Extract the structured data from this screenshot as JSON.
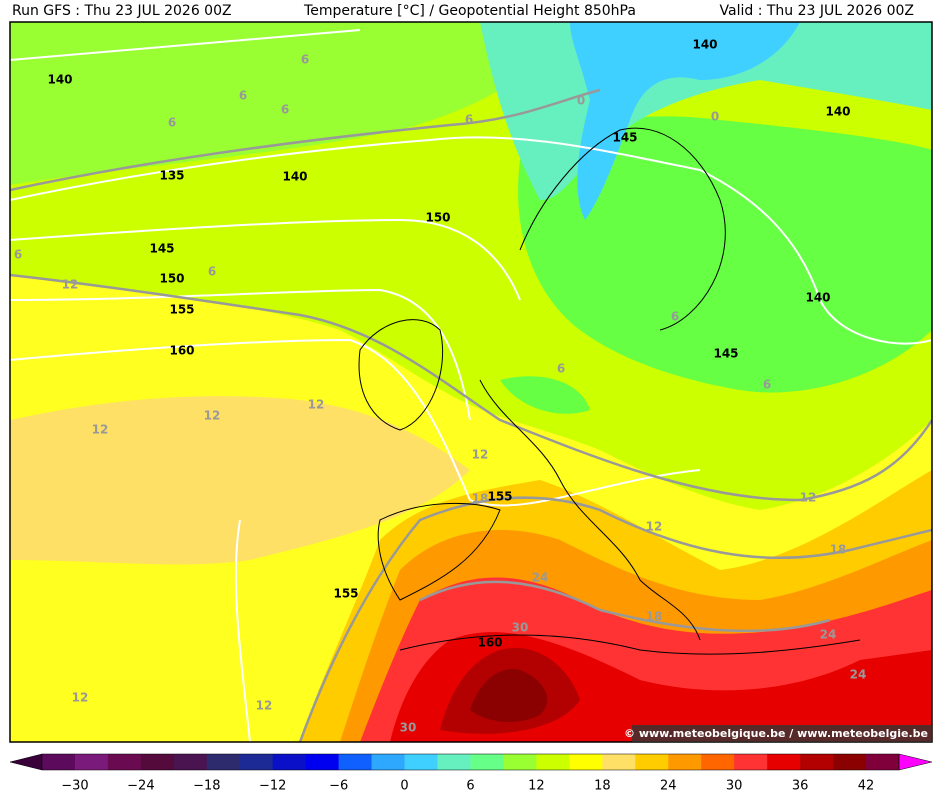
{
  "header": {
    "run": "Run GFS : Thu 23 JUL 2026 00Z",
    "title": "Temperature [°C] / Geopotential Height 850hPa",
    "valid": "Valid : Thu 23 JUL 2026 00Z"
  },
  "map": {
    "height_labels": [
      "140",
      "140",
      "140",
      "140",
      "145",
      "135",
      "140",
      "150",
      "145",
      "150",
      "155",
      "160",
      "145",
      "155",
      "155",
      "160"
    ],
    "temperature_labels": [
      "6",
      "6",
      "6",
      "6",
      "6",
      "0",
      "0",
      "6",
      "6",
      "12",
      "6",
      "6",
      "6",
      "12",
      "12",
      "12",
      "12",
      "18",
      "12",
      "12",
      "18",
      "24",
      "18",
      "30",
      "24",
      "24",
      "12",
      "12",
      "30"
    ],
    "watermark": "© www.meteobelgique.be / www.meteobelgie.be"
  },
  "colorbar": {
    "ticks": [
      "−30",
      "−24",
      "−18",
      "−12",
      "−6",
      "0",
      "6",
      "12",
      "18",
      "24",
      "30",
      "36",
      "42"
    ],
    "colors": [
      "#3a003a",
      "#5c0a5c",
      "#7a1a7a",
      "#6a0a50",
      "#550a3c",
      "#4a1450",
      "#2d2a6e",
      "#1c2a96",
      "#0a10c8",
      "#0000f0",
      "#1060ff",
      "#2ea8ff",
      "#40d0ff",
      "#66f0c0",
      "#66ff88",
      "#99ff33",
      "#ccff00",
      "#ffff00",
      "#ffe066",
      "#ffcc00",
      "#ff9900",
      "#ff6600",
      "#ff3333",
      "#e60000",
      "#b30000",
      "#8b0000",
      "#80003c",
      "#ff00ff"
    ]
  }
}
